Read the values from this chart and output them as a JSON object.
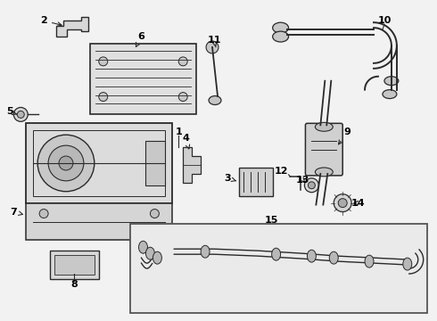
{
  "bg_color": "#f2f2f2",
  "line_color": "#2a2a2a",
  "label_color": "#000000",
  "fs": 8,
  "fs_small": 7
}
